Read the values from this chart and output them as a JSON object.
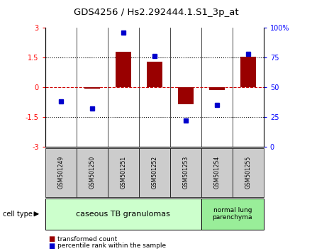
{
  "title": "GDS4256 / Hs2.292444.1.S1_3p_at",
  "samples": [
    "GSM501249",
    "GSM501250",
    "GSM501251",
    "GSM501252",
    "GSM501253",
    "GSM501254",
    "GSM501255"
  ],
  "transformed_count": [
    0.0,
    -0.08,
    1.8,
    1.3,
    -0.85,
    -0.15,
    1.55
  ],
  "percentile_rank": [
    38,
    32,
    96,
    76,
    22,
    35,
    78
  ],
  "bar_color": "#990000",
  "dot_color": "#0000cc",
  "zero_line_color": "#cc0000",
  "ylim_left": [
    -3,
    3
  ],
  "ylim_right": [
    0,
    100
  ],
  "yticks_left": [
    -3,
    -1.5,
    0,
    1.5,
    3
  ],
  "yticks_right": [
    0,
    25,
    50,
    75,
    100
  ],
  "ytick_labels_left": [
    "-3",
    "-1.5",
    "0",
    "1.5",
    "3"
  ],
  "ytick_labels_right": [
    "0",
    "25",
    "50",
    "75",
    "100%"
  ],
  "hlines": [
    1.5,
    -1.5
  ],
  "group1_label": "caseous TB granulomas",
  "group2_label": "normal lung\nparenchyma",
  "group1_color": "#ccffcc",
  "group2_color": "#99ee99",
  "cell_type_label": "cell type",
  "legend_bar_label": "transformed count",
  "legend_dot_label": "percentile rank within the sample",
  "bg_color": "#ffffff",
  "bar_width": 0.5
}
